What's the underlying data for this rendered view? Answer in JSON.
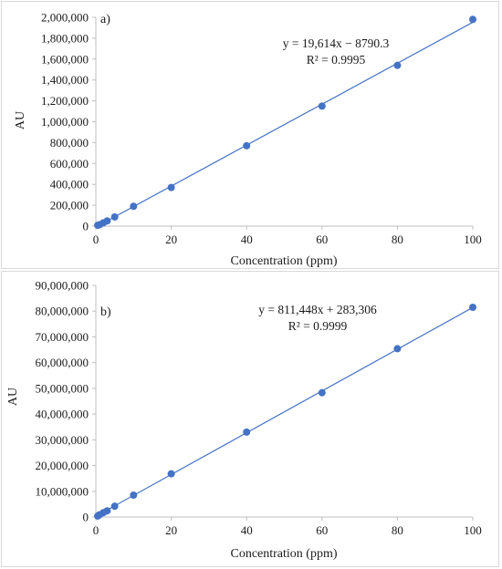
{
  "chart_data": [
    {
      "type": "scatter",
      "panel_label": "a)",
      "xlabel": "Concentration (ppm)",
      "ylabel": "AU",
      "xlim": [
        0,
        100
      ],
      "ylim": [
        0,
        2000000
      ],
      "x_ticks": [
        "0",
        "20",
        "40",
        "60",
        "80",
        "100"
      ],
      "y_ticks": [
        "0",
        "200,000",
        "400,000",
        "600,000",
        "800,000",
        "1,000,000",
        "1,200,000",
        "1,400,000",
        "1,600,000",
        "1,800,000",
        "2,000,000"
      ],
      "grid": false,
      "marker_color": "#4472c4",
      "trendline": {
        "slope": 19614,
        "intercept": -8790.3,
        "equation": "y = 19,614x − 8790.3",
        "r2": "R² = 0.9995"
      },
      "points": [
        {
          "x": 0.5,
          "y": 8000
        },
        {
          "x": 1,
          "y": 14000
        },
        {
          "x": 2,
          "y": 32000
        },
        {
          "x": 3,
          "y": 50000
        },
        {
          "x": 5,
          "y": 88000
        },
        {
          "x": 10,
          "y": 190000
        },
        {
          "x": 20,
          "y": 370000
        },
        {
          "x": 40,
          "y": 770000
        },
        {
          "x": 60,
          "y": 1150000
        },
        {
          "x": 80,
          "y": 1540000
        },
        {
          "x": 100,
          "y": 1980000
        }
      ]
    },
    {
      "type": "scatter",
      "panel_label": "b)",
      "xlabel": "Concentration (ppm)",
      "ylabel": "AU",
      "xlim": [
        0,
        100
      ],
      "ylim": [
        0,
        90000000
      ],
      "x_ticks": [
        "0",
        "20",
        "40",
        "60",
        "80",
        "100"
      ],
      "y_ticks": [
        "0",
        "10,000,000",
        "20,000,000",
        "30,000,000",
        "40,000,000",
        "50,000,000",
        "60,000,000",
        "70,000,000",
        "80,000,000",
        "90,000,000"
      ],
      "grid": false,
      "marker_color": "#4472c4",
      "trendline": {
        "slope": 811448,
        "intercept": 283306,
        "equation": "y = 811,448x + 283,306",
        "r2": "R² = 0.9999"
      },
      "points": [
        {
          "x": 0.5,
          "y": 400000
        },
        {
          "x": 1,
          "y": 900000
        },
        {
          "x": 2,
          "y": 1700000
        },
        {
          "x": 3,
          "y": 2400000
        },
        {
          "x": 5,
          "y": 4200000
        },
        {
          "x": 10,
          "y": 8500000
        },
        {
          "x": 20,
          "y": 16800000
        },
        {
          "x": 40,
          "y": 33000000
        },
        {
          "x": 60,
          "y": 48300000
        },
        {
          "x": 80,
          "y": 65400000
        },
        {
          "x": 100,
          "y": 81500000
        }
      ]
    }
  ]
}
